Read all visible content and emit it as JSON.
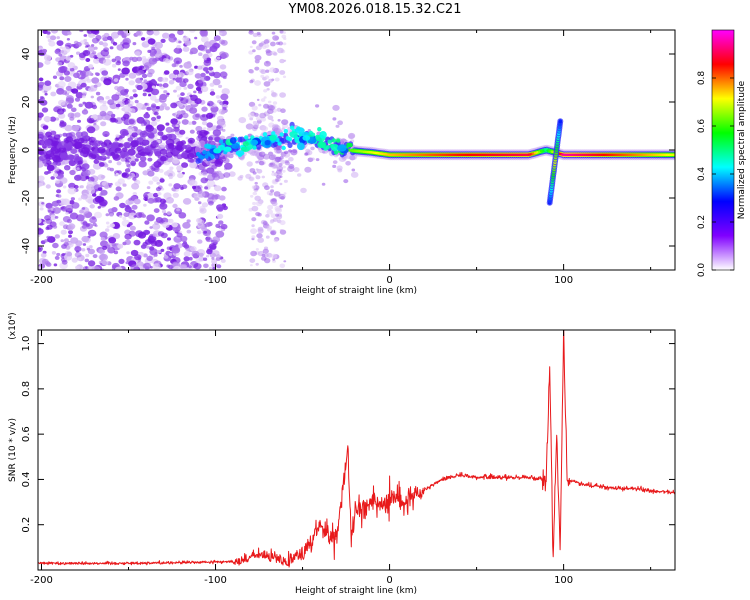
{
  "title": "YM08.2026.018.15.32.C21",
  "chart_data": [
    {
      "type": "heatmap",
      "name": "spectrogram",
      "xlabel": "Height of straight line (km)",
      "ylabel": "Frequency (Hz)",
      "xlim": [
        -202,
        164
      ],
      "ylim": [
        -50,
        50
      ],
      "xticks": [
        -200,
        -100,
        0,
        100
      ],
      "xtick_labels": [
        "-200",
        "-100",
        "0",
        "100"
      ],
      "yticks": [
        -40,
        -20,
        0,
        20,
        40
      ],
      "ytick_labels": [
        "-40",
        "-20",
        "0",
        "20",
        "40"
      ],
      "colorbar": {
        "label": "Normalized spectral amplitude",
        "range": [
          0,
          1
        ],
        "ticks": [
          0.0,
          0.2,
          0.4,
          0.6,
          0.8
        ],
        "tick_labels": [
          "0.0",
          "0.2",
          "0.4",
          "0.6",
          "0.8"
        ],
        "colors": [
          "#ffffff",
          "#8000ff",
          "#0000ff",
          "#00ffff",
          "#00ff00",
          "#ffff00",
          "#ff0000",
          "#ff00ff"
        ]
      },
      "ridge": [
        {
          "x": -110,
          "y": -3,
          "a": 0.3
        },
        {
          "x": -95,
          "y": 0,
          "a": 0.35
        },
        {
          "x": -80,
          "y": 3,
          "a": 0.45
        },
        {
          "x": -65,
          "y": 5,
          "a": 0.4
        },
        {
          "x": -50,
          "y": 6,
          "a": 0.45
        },
        {
          "x": -35,
          "y": 2,
          "a": 0.5
        },
        {
          "x": -25,
          "y": 0,
          "a": 0.6
        },
        {
          "x": -10,
          "y": -1,
          "a": 0.7
        },
        {
          "x": 0,
          "y": -2,
          "a": 0.75
        },
        {
          "x": 40,
          "y": -2,
          "a": 0.85
        },
        {
          "x": 80,
          "y": -2,
          "a": 0.9
        },
        {
          "x": 90,
          "y": 0,
          "a": 0.5
        },
        {
          "x": 100,
          "y": -2,
          "a": 0.95
        },
        {
          "x": 164,
          "y": -2,
          "a": 0.7
        }
      ],
      "feature_at_95km": {
        "x": 95,
        "ymin": -22,
        "ymax": 12
      }
    },
    {
      "type": "line",
      "name": "snr",
      "xlabel": "Height of straight line (km)",
      "ylabel": "SNR (10 * v/v)",
      "y_multiplier": "(x10⁴)",
      "xlim": [
        -202,
        164
      ],
      "ylim": [
        0,
        1.06
      ],
      "xticks": [
        -200,
        -100,
        0,
        100
      ],
      "xtick_labels": [
        "-200",
        "-100",
        "0",
        "100"
      ],
      "yticks": [
        0.2,
        0.4,
        0.6,
        0.8,
        1.0
      ],
      "ytick_labels": [
        "0.2",
        "0.4",
        "0.6",
        "0.8",
        "1.0"
      ],
      "color": "#e8191b",
      "series": [
        {
          "name": "SNR",
          "x": [
            -202,
            -150,
            -100,
            -85,
            -75,
            -70,
            -60,
            -50,
            -45,
            -40,
            -35,
            -30,
            -24,
            -22,
            -20,
            -15,
            -10,
            -5,
            0,
            10,
            20,
            30,
            40,
            50,
            60,
            70,
            80,
            88,
            90,
            92,
            94,
            96,
            98,
            100,
            102,
            110,
            120,
            130,
            140,
            150,
            164
          ],
          "y": [
            0.03,
            0.03,
            0.035,
            0.04,
            0.07,
            0.06,
            0.04,
            0.08,
            0.12,
            0.2,
            0.15,
            0.15,
            0.55,
            0.12,
            0.25,
            0.27,
            0.3,
            0.28,
            0.32,
            0.3,
            0.35,
            0.4,
            0.42,
            0.41,
            0.41,
            0.41,
            0.41,
            0.4,
            0.4,
            0.9,
            0.05,
            0.62,
            0.07,
            1.05,
            0.4,
            0.38,
            0.37,
            0.36,
            0.36,
            0.35,
            0.34
          ]
        }
      ]
    }
  ]
}
